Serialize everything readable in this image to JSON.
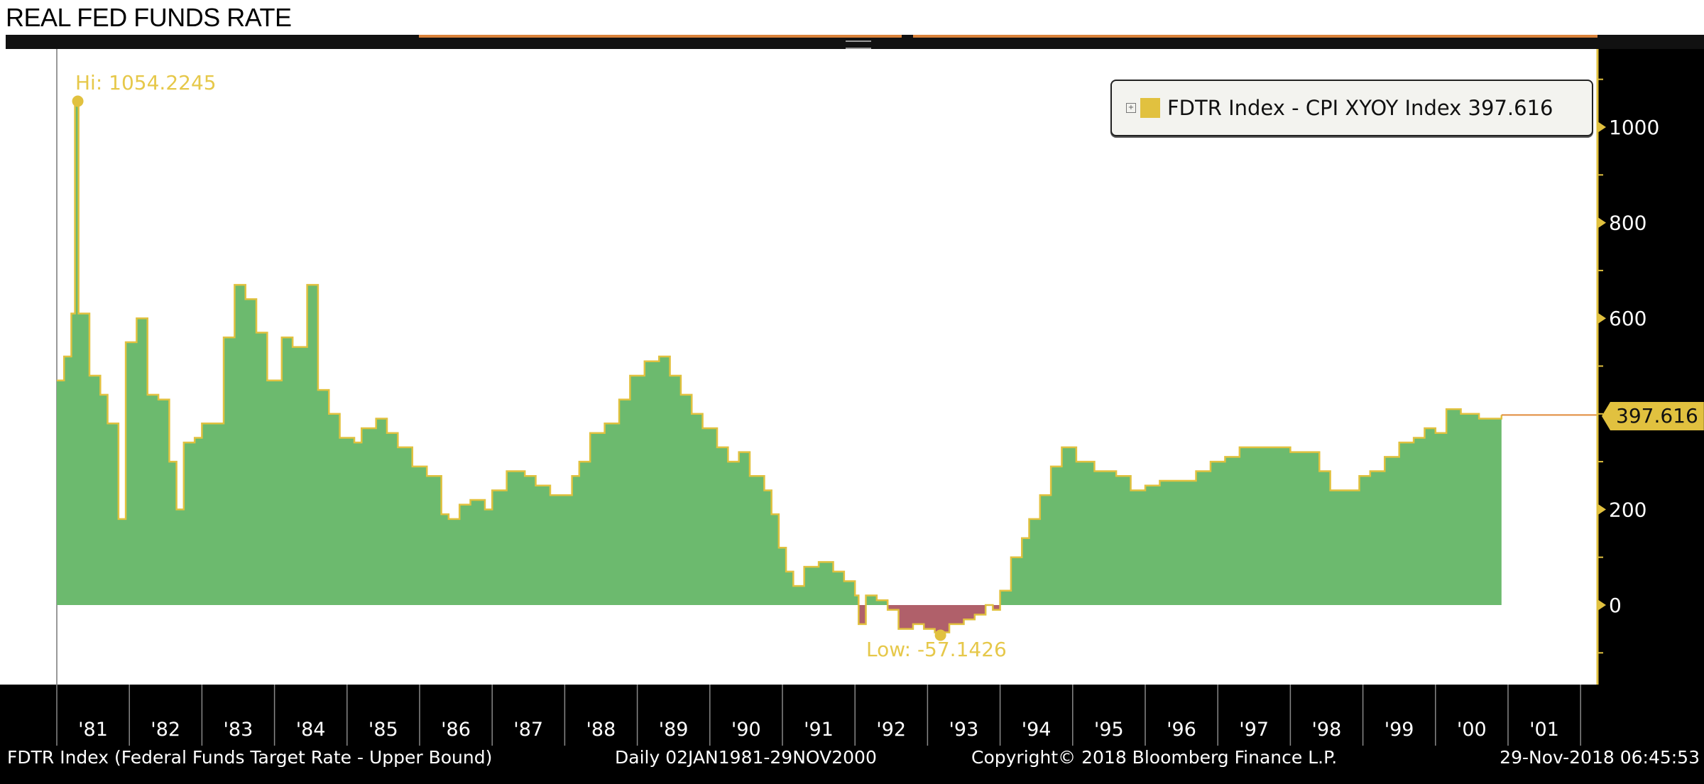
{
  "title": "REAL FED FUNDS RATE",
  "legend": {
    "label": "FDTR Index - CPI XYOY Index 397.616",
    "color": "#e1c13f",
    "expand_icon": "expand-box-icon"
  },
  "annotations": {
    "high": "Hi: 1054.2245",
    "low": "Low: -57.1426",
    "last_value": "397.616"
  },
  "footer": {
    "source": "FDTR Index (Federal Funds Target Rate - Upper Bound)",
    "range": "Daily 02JAN1981-29NOV2000",
    "copyright": "Copyright© 2018 Bloomberg Finance L.P.",
    "timestamp": "29-Nov-2018 06:45:53"
  },
  "colors": {
    "positive": "#6cba6e",
    "negative": "#b0606a",
    "outline": "#e1c13f",
    "axis": "#e1c13f",
    "last_line": "#e08a3a"
  },
  "chart_data": {
    "type": "area",
    "title": "REAL FED FUNDS RATE",
    "series_name": "FDTR Index - CPI XYOY Index",
    "xlim": [
      1981,
      2002
    ],
    "ylim": [
      -166,
      1165
    ],
    "y_ticks": [
      0,
      200,
      600,
      800,
      1000
    ],
    "y_tick_labels": [
      "0",
      "200",
      "600",
      "800",
      "1000"
    ],
    "x_tick_labels": [
      "'81",
      "'82",
      "'83",
      "'84",
      "'85",
      "'86",
      "'87",
      "'88",
      "'89",
      "'90",
      "'91",
      "'92",
      "'93",
      "'94",
      "'95",
      "'96",
      "'97",
      "'98",
      "'99",
      "'00",
      "'01"
    ],
    "axis_side": "right",
    "legend_position": "top-right",
    "high": 1054.2245,
    "low": -57.1426,
    "last": 397.616,
    "x": [
      1981.0,
      1981.1,
      1981.2,
      1981.25,
      1981.3,
      1981.45,
      1981.6,
      1981.7,
      1981.85,
      1981.95,
      1982.1,
      1982.25,
      1982.4,
      1982.55,
      1982.65,
      1982.75,
      1982.9,
      1983.0,
      1983.2,
      1983.3,
      1983.45,
      1983.6,
      1983.75,
      1983.9,
      1984.1,
      1984.25,
      1984.45,
      1984.6,
      1984.75,
      1984.9,
      1985.1,
      1985.2,
      1985.4,
      1985.55,
      1985.7,
      1985.9,
      1986.1,
      1986.3,
      1986.4,
      1986.55,
      1986.7,
      1986.9,
      1987.0,
      1987.2,
      1987.45,
      1987.6,
      1987.8,
      1987.95,
      1988.1,
      1988.2,
      1988.35,
      1988.55,
      1988.75,
      1988.9,
      1989.1,
      1989.3,
      1989.45,
      1989.6,
      1989.75,
      1989.9,
      1990.1,
      1990.25,
      1990.4,
      1990.55,
      1990.75,
      1990.85,
      1990.95,
      1991.05,
      1991.15,
      1991.3,
      1991.5,
      1991.7,
      1991.85,
      1992.0,
      1992.05,
      1992.15,
      1992.3,
      1992.45,
      1992.6,
      1992.8,
      1992.95,
      1993.1,
      1993.3,
      1993.5,
      1993.65,
      1993.8,
      1993.9,
      1994.0,
      1994.15,
      1994.3,
      1994.4,
      1994.55,
      1994.7,
      1994.85,
      1995.05,
      1995.3,
      1995.6,
      1995.8,
      1996.0,
      1996.2,
      1996.45,
      1996.7,
      1996.9,
      1997.1,
      1997.3,
      1997.6,
      1997.8,
      1998.0,
      1998.3,
      1998.4,
      1998.55,
      1998.8,
      1998.95,
      1999.1,
      1999.3,
      1999.5,
      1999.7,
      1999.85,
      2000.0,
      2000.15,
      2000.35,
      2000.6,
      2000.91
    ],
    "values": [
      470,
      520,
      610,
      1054.2245,
      610,
      480,
      440,
      380,
      180,
      550,
      600,
      440,
      430,
      300,
      200,
      340,
      350,
      380,
      380,
      560,
      670,
      640,
      570,
      470,
      560,
      540,
      670,
      450,
      400,
      350,
      340,
      370,
      390,
      360,
      330,
      290,
      270,
      190,
      180,
      210,
      220,
      200,
      240,
      280,
      270,
      250,
      230,
      230,
      270,
      300,
      360,
      380,
      430,
      480,
      510,
      520,
      480,
      440,
      400,
      370,
      330,
      300,
      320,
      270,
      240,
      190,
      120,
      70,
      40,
      80,
      90,
      70,
      50,
      20,
      -40,
      20,
      10,
      -10,
      -50,
      -40,
      -50,
      -57.1426,
      -40,
      -30,
      -20,
      0,
      -10,
      30,
      100,
      140,
      180,
      230,
      290,
      330,
      300,
      280,
      270,
      240,
      250,
      260,
      260,
      280,
      300,
      310,
      330,
      330,
      330,
      320,
      320,
      280,
      240,
      240,
      270,
      280,
      310,
      340,
      350,
      370,
      360,
      410,
      400,
      390,
      397.616
    ]
  }
}
